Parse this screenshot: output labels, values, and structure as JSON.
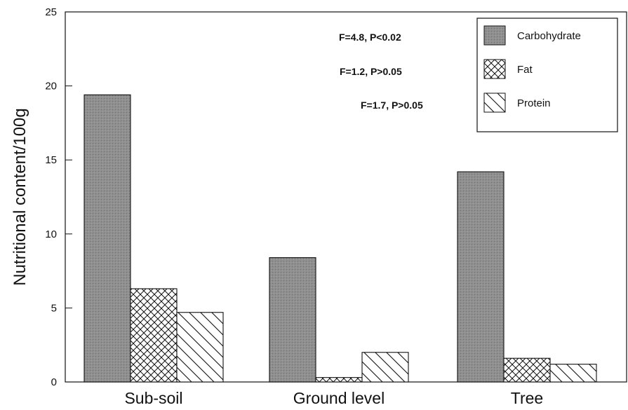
{
  "chart_data": {
    "type": "bar",
    "categories": [
      "Sub-soil",
      "Ground level",
      "Tree"
    ],
    "series": [
      {
        "name": "Carbohydrate",
        "values": [
          19.4,
          8.4,
          14.2
        ],
        "pattern": "stipple"
      },
      {
        "name": "Fat",
        "values": [
          6.3,
          0.3,
          1.6
        ],
        "pattern": "crosshatch"
      },
      {
        "name": "Protein",
        "values": [
          4.7,
          2.0,
          1.2
        ],
        "pattern": "diagonal"
      }
    ],
    "ylabel": "Nutritional content/100g",
    "xlabel": "",
    "ylim": [
      0,
      25
    ],
    "yticks": [
      0,
      5,
      10,
      15,
      20,
      25
    ],
    "annotations": [
      "F=4.8, P<0.02",
      "F=1.2, P>0.05",
      "F=1.7, P>0.05"
    ],
    "legend_position": "top-right",
    "grid": false,
    "colors": {
      "carbohydrate_fill": "#8f8f8f",
      "line": "#111111"
    }
  }
}
